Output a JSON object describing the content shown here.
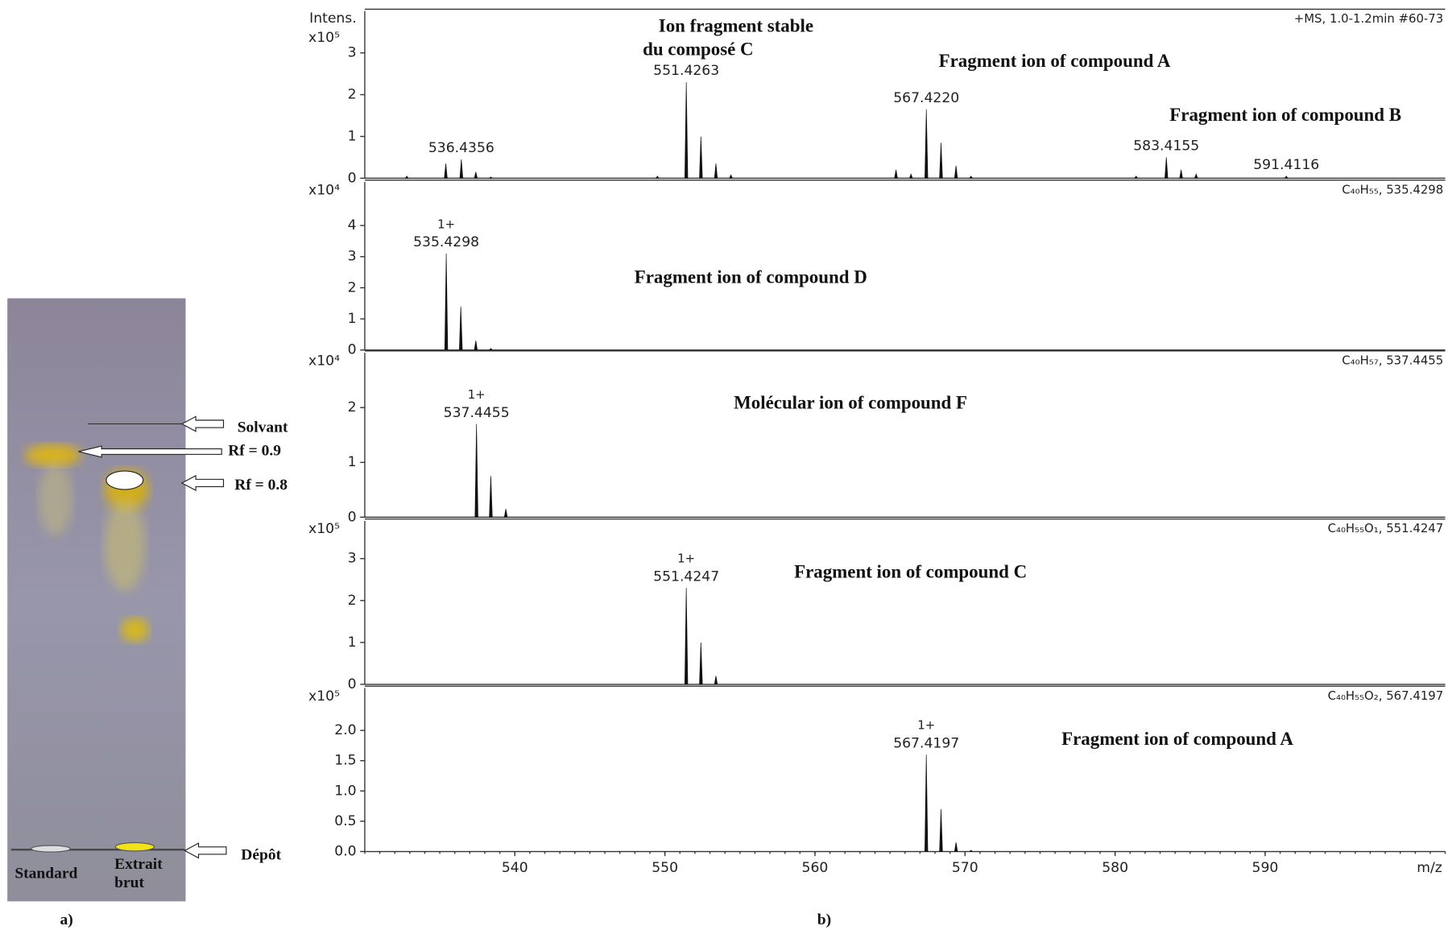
{
  "panels": {
    "a": "a)",
    "b": "b)"
  },
  "tlc": {
    "solvent": "Solvant",
    "rf_standard": "Rf = 0.9",
    "rf_extract": "Rf = 0.8",
    "deposit": "Dépôt",
    "standard": "Standard",
    "extract": [
      "Extrait",
      "brut"
    ]
  },
  "chart_data": [
    {
      "type": "stick",
      "ylabel": "Intens.",
      "multiplier": "x10⁵",
      "info": "+MS, 1.0-1.2min #60-73",
      "annotations": [
        "Ion fragment stable",
        "du composé C",
        "Fragment ion of compound A",
        "Fragment ion of compound B"
      ],
      "xlim": [
        530,
        602
      ],
      "ylim": [
        0,
        4
      ],
      "yticks": [
        0,
        1,
        2,
        3
      ],
      "x": [
        532.8,
        535.4,
        536.4356,
        537.4,
        538.4,
        549.5,
        551.4263,
        552.4,
        553.4,
        554.4,
        565.4,
        566.4,
        567.422,
        568.4,
        569.4,
        570.4,
        581.4,
        583.4155,
        584.4,
        585.4,
        591.4116
      ],
      "values": [
        0.05,
        0.35,
        0.45,
        0.15,
        0.03,
        0.05,
        2.3,
        1.0,
        0.35,
        0.08,
        0.2,
        0.1,
        1.65,
        0.85,
        0.3,
        0.05,
        0.05,
        0.5,
        0.2,
        0.1,
        0.05
      ],
      "x_labels": [
        null,
        null,
        "536.4356",
        null,
        null,
        null,
        "551.4263",
        null,
        null,
        null,
        null,
        null,
        "567.4220",
        null,
        null,
        null,
        null,
        "583.4155",
        null,
        null,
        "591.4116"
      ]
    },
    {
      "type": "stick",
      "multiplier": "x10⁴",
      "info": "C₄₀H₅₅, 535.4298",
      "annotations": [
        "Fragment ion of compound D"
      ],
      "xlim": [
        530,
        602
      ],
      "ylim": [
        0,
        5.4
      ],
      "yticks": [
        0,
        1,
        2,
        3,
        4
      ],
      "x": [
        535.4298,
        536.4,
        537.4,
        538.4
      ],
      "values": [
        3.1,
        1.4,
        0.3,
        0.05
      ],
      "x_labels": [
        "535.4298",
        null,
        null,
        null
      ],
      "charge_labels": [
        "1+",
        null,
        null,
        null
      ]
    },
    {
      "type": "stick",
      "multiplier": "x10⁴",
      "info": "C₄₀H₅₇, 537.4455",
      "annotations": [
        "Molécular ion of compound F"
      ],
      "xlim": [
        530,
        602
      ],
      "ylim": [
        0,
        3
      ],
      "yticks": [
        0,
        1,
        2
      ],
      "x": [
        537.4455,
        538.4,
        539.4
      ],
      "values": [
        1.7,
        0.75,
        0.15
      ],
      "x_labels": [
        "537.4455",
        null,
        null
      ],
      "charge_labels": [
        "1+",
        null,
        null
      ]
    },
    {
      "type": "stick",
      "multiplier": "x10⁵",
      "info": "C₄₀H₅₅O₁, 551.4247",
      "annotations": [
        "Fragment ion of compound C"
      ],
      "xlim": [
        530,
        602
      ],
      "ylim": [
        0,
        3.9
      ],
      "yticks": [
        0,
        1,
        2,
        3
      ],
      "x": [
        551.4247,
        552.4,
        553.4
      ],
      "values": [
        2.3,
        1.0,
        0.2
      ],
      "x_labels": [
        "551.4247",
        null,
        null
      ],
      "charge_labels": [
        "1+",
        null,
        null
      ]
    },
    {
      "type": "stick",
      "multiplier": "x10⁵",
      "info": "C₄₀H₅₅O₂, 567.4197",
      "annotations": [
        "Fragment ion of compound A"
      ],
      "xlim": [
        530,
        602
      ],
      "ylim": [
        0,
        2.7
      ],
      "yticks": [
        {
          "value": 0,
          "label": "0.0"
        },
        0.5,
        {
          "value": 1,
          "label": "1.0"
        },
        1.5,
        {
          "value": 2,
          "label": "2.0"
        }
      ],
      "xticks": [
        540,
        550,
        560,
        570,
        580,
        590
      ],
      "xlabel": "m/z",
      "x": [
        567.4197,
        568.4,
        569.4,
        570.4
      ],
      "values": [
        1.6,
        0.7,
        0.15,
        0.02
      ],
      "x_labels": [
        "567.4197",
        null,
        null,
        null
      ],
      "charge_labels": [
        "1+",
        null,
        null,
        null
      ]
    }
  ]
}
